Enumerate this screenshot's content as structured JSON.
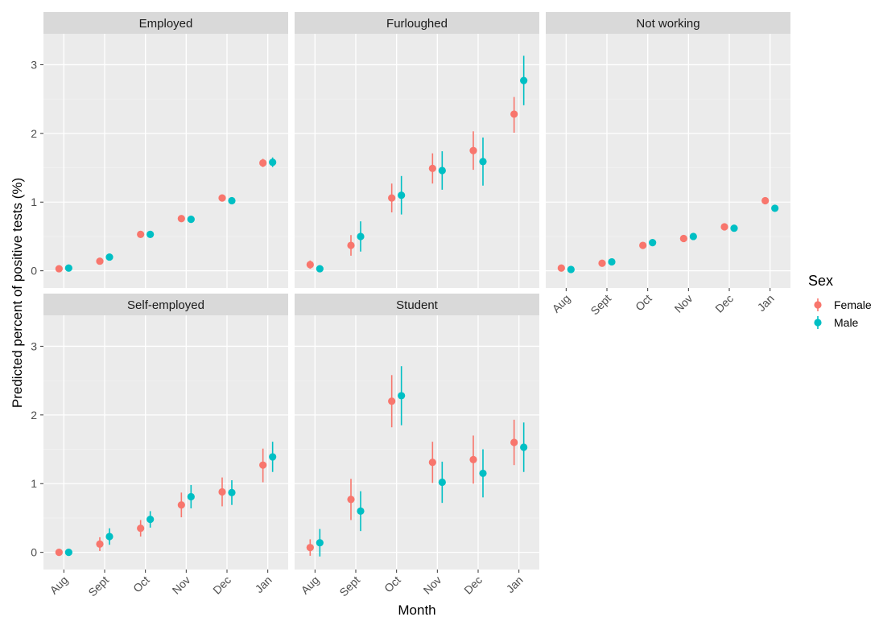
{
  "chart_data": {
    "type": "scatter",
    "xlabel": "Month",
    "ylabel": "Predicted percent of positive tests (%)",
    "categories": [
      "Aug",
      "Sept",
      "Oct",
      "Nov",
      "Dec",
      "Jan"
    ],
    "y_ticks": [
      0,
      1,
      2,
      3
    ],
    "ylim": [
      -0.25,
      3.45
    ],
    "grid": true,
    "legend": {
      "title": "Sex",
      "placement": "right",
      "entries": [
        {
          "name": "Female",
          "color": "#F8766D"
        },
        {
          "name": "Male",
          "color": "#00BFC4"
        }
      ]
    },
    "panels": [
      {
        "title": "Employed",
        "series": [
          {
            "name": "Female",
            "values": [
              0.03,
              0.14,
              0.53,
              0.76,
              1.06,
              1.57
            ],
            "lower": [
              0.01,
              0.11,
              0.5,
              0.73,
              1.02,
              1.51
            ],
            "upper": [
              0.05,
              0.17,
              0.56,
              0.79,
              1.1,
              1.63
            ]
          },
          {
            "name": "Male",
            "values": [
              0.04,
              0.2,
              0.53,
              0.75,
              1.02,
              1.58
            ],
            "lower": [
              0.02,
              0.16,
              0.5,
              0.72,
              0.97,
              1.51
            ],
            "upper": [
              0.06,
              0.23,
              0.56,
              0.78,
              1.07,
              1.65
            ]
          }
        ]
      },
      {
        "title": "Furloughed",
        "series": [
          {
            "name": "Female",
            "values": [
              0.09,
              0.37,
              1.06,
              1.49,
              1.75,
              2.28
            ],
            "lower": [
              0.03,
              0.22,
              0.85,
              1.27,
              1.47,
              2.01
            ],
            "upper": [
              0.15,
              0.52,
              1.27,
              1.71,
              2.03,
              2.53
            ]
          },
          {
            "name": "Male",
            "values": [
              0.03,
              0.5,
              1.1,
              1.46,
              1.59,
              2.77
            ],
            "lower": [
              -0.02,
              0.28,
              0.82,
              1.18,
              1.24,
              2.41
            ],
            "upper": [
              0.08,
              0.72,
              1.38,
              1.74,
              1.94,
              3.13
            ]
          }
        ]
      },
      {
        "title": "Not working",
        "series": [
          {
            "name": "Female",
            "values": [
              0.04,
              0.11,
              0.37,
              0.47,
              0.64,
              1.02
            ],
            "lower": [
              0.02,
              0.08,
              0.33,
              0.43,
              0.6,
              0.97
            ],
            "upper": [
              0.06,
              0.14,
              0.41,
              0.51,
              0.68,
              1.07
            ]
          },
          {
            "name": "Male",
            "values": [
              0.02,
              0.13,
              0.41,
              0.5,
              0.62,
              0.91
            ],
            "lower": [
              0.0,
              0.1,
              0.37,
              0.46,
              0.58,
              0.86
            ],
            "upper": [
              0.04,
              0.16,
              0.45,
              0.54,
              0.66,
              0.96
            ]
          }
        ]
      },
      {
        "title": "Self-employed",
        "series": [
          {
            "name": "Female",
            "values": [
              0.0,
              0.12,
              0.35,
              0.69,
              0.88,
              1.27
            ],
            "lower": [
              -0.01,
              0.02,
              0.23,
              0.51,
              0.67,
              1.02
            ],
            "upper": [
              0.01,
              0.22,
              0.47,
              0.87,
              1.09,
              1.51
            ]
          },
          {
            "name": "Male",
            "values": [
              0.0,
              0.23,
              0.48,
              0.81,
              0.87,
              1.39
            ],
            "lower": [
              -0.01,
              0.11,
              0.36,
              0.64,
              0.69,
              1.17
            ],
            "upper": [
              0.01,
              0.35,
              0.6,
              0.98,
              1.05,
              1.61
            ]
          }
        ]
      },
      {
        "title": "Student",
        "series": [
          {
            "name": "Female",
            "values": [
              0.07,
              0.77,
              2.2,
              1.31,
              1.35,
              1.6
            ],
            "lower": [
              -0.05,
              0.47,
              1.82,
              1.01,
              1.0,
              1.27
            ],
            "upper": [
              0.19,
              1.07,
              2.58,
              1.61,
              1.7,
              1.93
            ]
          },
          {
            "name": "Male",
            "values": [
              0.14,
              0.6,
              2.28,
              1.02,
              1.15,
              1.53
            ],
            "lower": [
              -0.06,
              0.31,
              1.85,
              0.72,
              0.8,
              1.17
            ],
            "upper": [
              0.34,
              0.89,
              2.71,
              1.32,
              1.5,
              1.89
            ]
          }
        ]
      }
    ]
  }
}
